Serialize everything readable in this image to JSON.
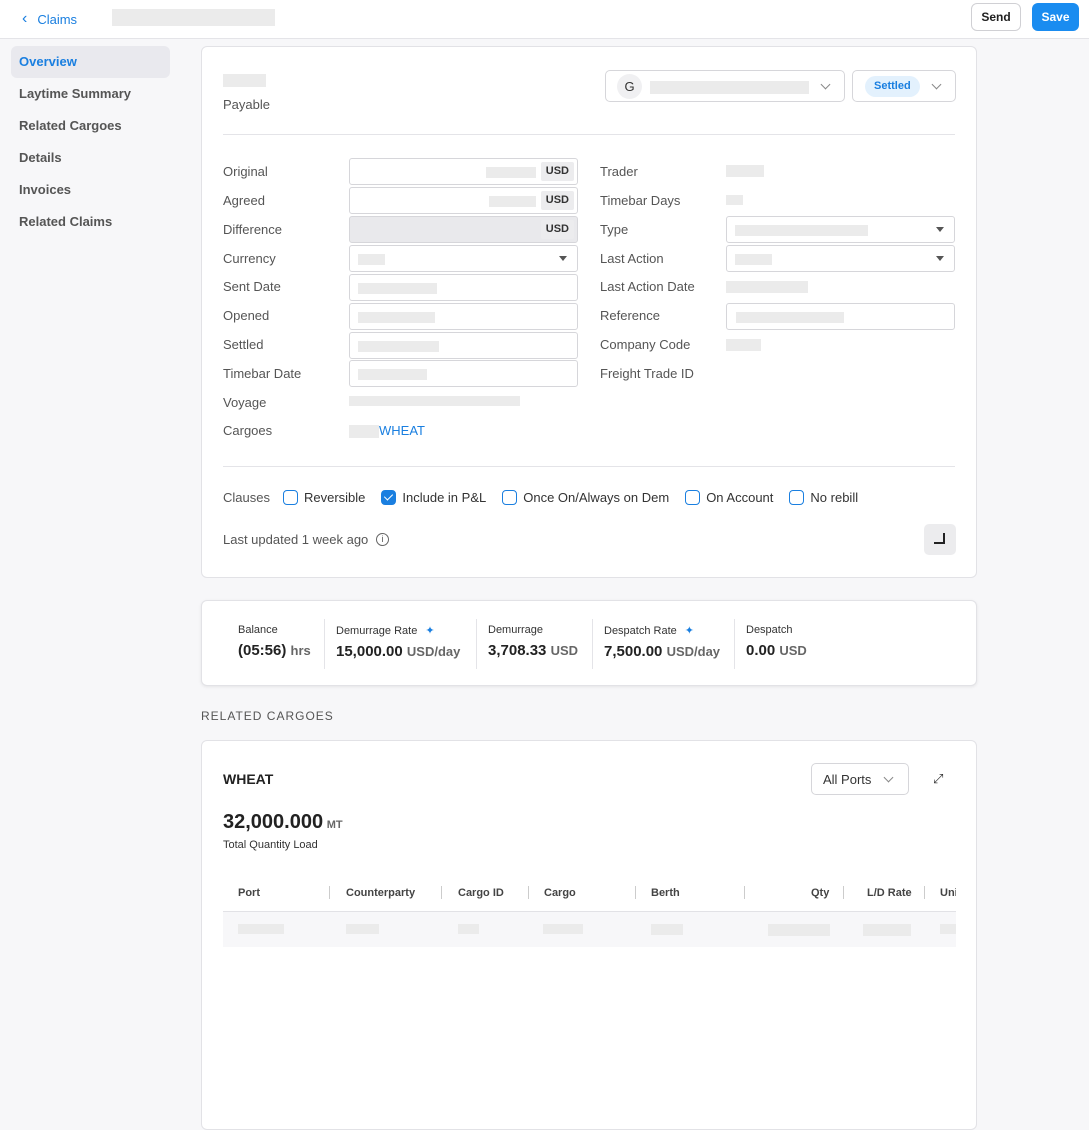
{
  "header": {
    "back_label": "Claims",
    "send": "Send",
    "save": "Save"
  },
  "sidebar": {
    "items": [
      {
        "label": "Overview",
        "active": true
      },
      {
        "label": "Laytime Summary"
      },
      {
        "label": "Related Cargoes"
      },
      {
        "label": "Details"
      },
      {
        "label": "Invoices"
      },
      {
        "label": "Related Claims"
      }
    ]
  },
  "claim": {
    "type_label": "Payable",
    "counterparty_initial": "G",
    "status": "Settled",
    "left_fields": {
      "original": "Original",
      "agreed": "Agreed",
      "difference": "Difference",
      "currency": "Currency",
      "sent_date": "Sent Date",
      "opened": "Opened",
      "settled": "Settled",
      "timebar_date": "Timebar Date",
      "voyage": "Voyage",
      "cargoes": "Cargoes"
    },
    "currency_unit": "USD",
    "cargo_link": "WHEAT",
    "right_fields": {
      "trader": "Trader",
      "timebar_days": "Timebar Days",
      "type": "Type",
      "last_action": "Last Action",
      "last_action_date": "Last Action Date",
      "reference": "Reference",
      "company_code": "Company Code",
      "freight_trade_id": "Freight Trade ID"
    },
    "clauses_label": "Clauses",
    "clauses": [
      {
        "label": "Reversible",
        "checked": false
      },
      {
        "label": "Include in P&L",
        "checked": true
      },
      {
        "label": "Once On/Always on Dem",
        "checked": false
      },
      {
        "label": "On Account",
        "checked": false
      },
      {
        "label": "No rebill",
        "checked": false
      }
    ],
    "last_updated": "Last updated 1 week ago"
  },
  "stats": [
    {
      "label": "Balance",
      "value": "(05:56)",
      "unit": "hrs"
    },
    {
      "label": "Demurrage Rate",
      "value": "15,000.00",
      "unit": "USD/day",
      "icon": "sparkle-icon"
    },
    {
      "label": "Demurrage",
      "value": "3,708.33",
      "unit": "USD"
    },
    {
      "label": "Despatch Rate",
      "value": "7,500.00",
      "unit": "USD/day",
      "icon": "sparkle-icon"
    },
    {
      "label": "Despatch",
      "value": "0.00",
      "unit": "USD"
    }
  ],
  "related": {
    "section_title": "RELATED CARGOES",
    "cargo": "WHEAT",
    "ports_select": "All Ports",
    "quantity": "32,000.000",
    "quantity_unit": "MT",
    "quantity_label": "Total Quantity Load",
    "columns": [
      "Port",
      "Counterparty",
      "Cargo ID",
      "Cargo",
      "Berth",
      "Qty",
      "L/D Rate",
      "Uni"
    ]
  },
  "colors": {
    "accent": "#1a7fe0",
    "status_bg": "#e3f1fd"
  }
}
